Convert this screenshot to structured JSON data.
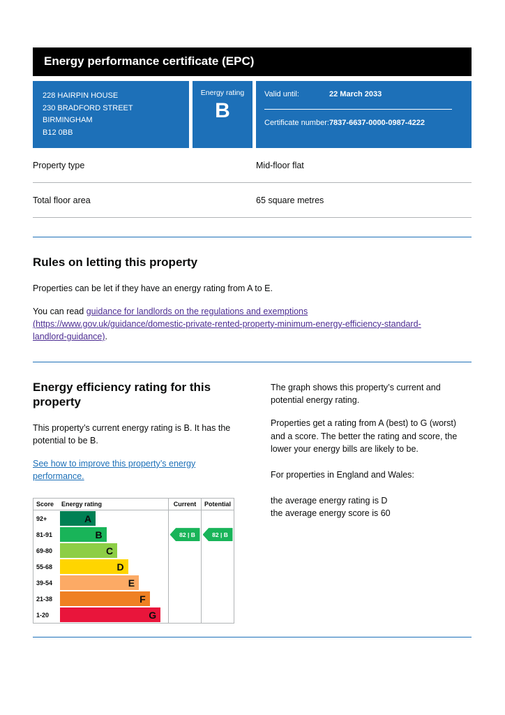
{
  "colors": {
    "panel_blue": "#1d70b8",
    "rule_blue": "#1d70b8",
    "banner_black": "#000000"
  },
  "header": {
    "title": "Energy performance certificate (EPC)"
  },
  "summary": {
    "address_lines": [
      "228 HAIRPIN HOUSE",
      "230 BRADFORD STREET",
      "BIRMINGHAM",
      "B12 0BB"
    ],
    "rating_label": "Energy rating",
    "rating_letter": "B",
    "valid_until_label": "Valid until:",
    "valid_until_value": "22 March 2033",
    "certificate_label": "Certificate number:",
    "certificate_value": "7837-6637-0000-0987-4222"
  },
  "details": {
    "rows": [
      {
        "label": "Property type",
        "value": "Mid-floor flat"
      },
      {
        "label": "Total floor area",
        "value": "65 square metres"
      }
    ]
  },
  "letting": {
    "heading": "Rules on letting this property",
    "intro": "Properties can be let if they have an energy rating from A to E.",
    "read_prefix": "You can read ",
    "link_text": "guidance for landlords on the regulations and exemptions (https://www.gov.uk/guidance/domestic-private-rented-property-minimum-energy-efficiency-standard-landlord-guidance)",
    "read_suffix": "."
  },
  "efficiency": {
    "heading": "Energy efficiency rating for this property",
    "current_text": "This property’s current energy rating is B. It has the potential to be B.",
    "improve_link": "See how to improve this property’s energy performance.",
    "graph_intro": "The graph shows this property’s current and potential energy rating.",
    "explainer": "Properties get a rating from A (best) to G (worst) and a score. The better the rating and score, the lower your energy bills are likely to be.",
    "england_wales": "For properties in England and Wales:",
    "avg_rating": "the average energy rating is D",
    "avg_score": "the average energy score is 60"
  },
  "chart_data": {
    "type": "bar",
    "title": "Energy efficiency rating",
    "columns": {
      "score": "Score",
      "rating": "Energy rating",
      "current": "Current",
      "potential": "Potential"
    },
    "bands": [
      {
        "score": "92+",
        "letter": "A",
        "color": "#008054",
        "width_pct": 33
      },
      {
        "score": "81-91",
        "letter": "B",
        "color": "#19b459",
        "width_pct": 43
      },
      {
        "score": "69-80",
        "letter": "C",
        "color": "#8dce46",
        "width_pct": 53
      },
      {
        "score": "55-68",
        "letter": "D",
        "color": "#ffd500",
        "width_pct": 63
      },
      {
        "score": "39-54",
        "letter": "E",
        "color": "#fcaa65",
        "width_pct": 73
      },
      {
        "score": "21-38",
        "letter": "F",
        "color": "#ef8023",
        "width_pct": 83
      },
      {
        "score": "1-20",
        "letter": "G",
        "color": "#e9153b",
        "width_pct": 93
      }
    ],
    "current": {
      "label": "82 | B",
      "score": 82,
      "band": "B",
      "band_index": 1,
      "color": "#19b459"
    },
    "potential": {
      "label": "82 | B",
      "score": 82,
      "band": "B",
      "band_index": 1,
      "color": "#19b459"
    }
  }
}
